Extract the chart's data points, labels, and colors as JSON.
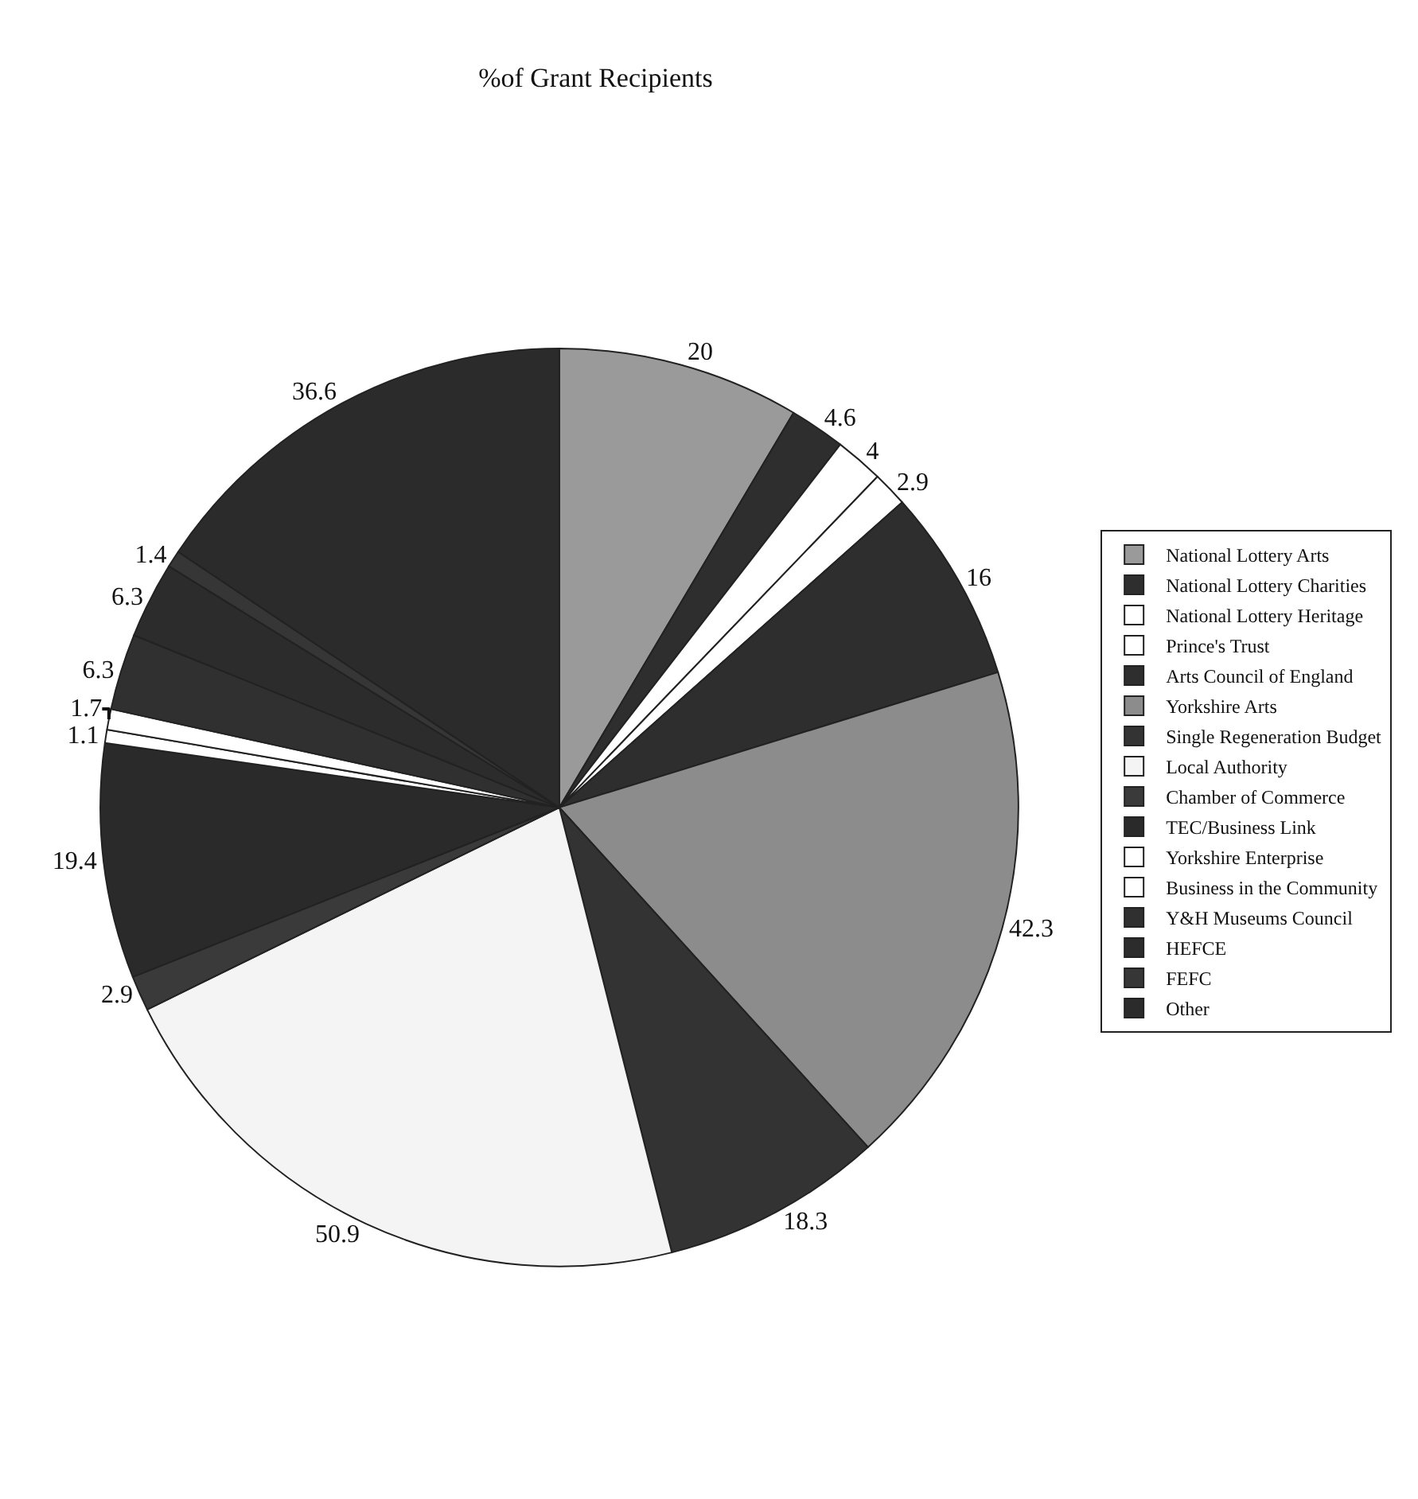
{
  "chart_data": {
    "type": "pie",
    "title": "%of Grant Recipients",
    "categories": [
      "National Lottery Arts",
      "National Lottery Charities",
      "National Lottery Heritage",
      "Prince's Trust",
      "Arts Council of England",
      "Yorkshire Arts",
      "Single Regeneration Budget",
      "Local Authority",
      "Chamber of Commerce",
      "TEC/Business Link",
      "Yorkshire Enterprise",
      "Business in the Community",
      "Y&H Museums Council",
      "HEFCE",
      "FEFC",
      "Other"
    ],
    "values": [
      20,
      4.6,
      4,
      2.9,
      16,
      42.3,
      18.3,
      50.9,
      2.9,
      19.4,
      1.1,
      1.7,
      6.3,
      6.3,
      1.4,
      36.6
    ],
    "colors": [
      "#9a9a9a",
      "#2e2e2e",
      "#ffffff",
      "#ffffff",
      "#2e2e2e",
      "#8c8c8c",
      "#333333",
      "#f4f4f4",
      "#3a3a3a",
      "#2a2a2a",
      "#ffffff",
      "#ffffff",
      "#303030",
      "#2c2c2c",
      "#363636",
      "#2b2b2b"
    ],
    "data_labels": true,
    "legend": "right"
  }
}
